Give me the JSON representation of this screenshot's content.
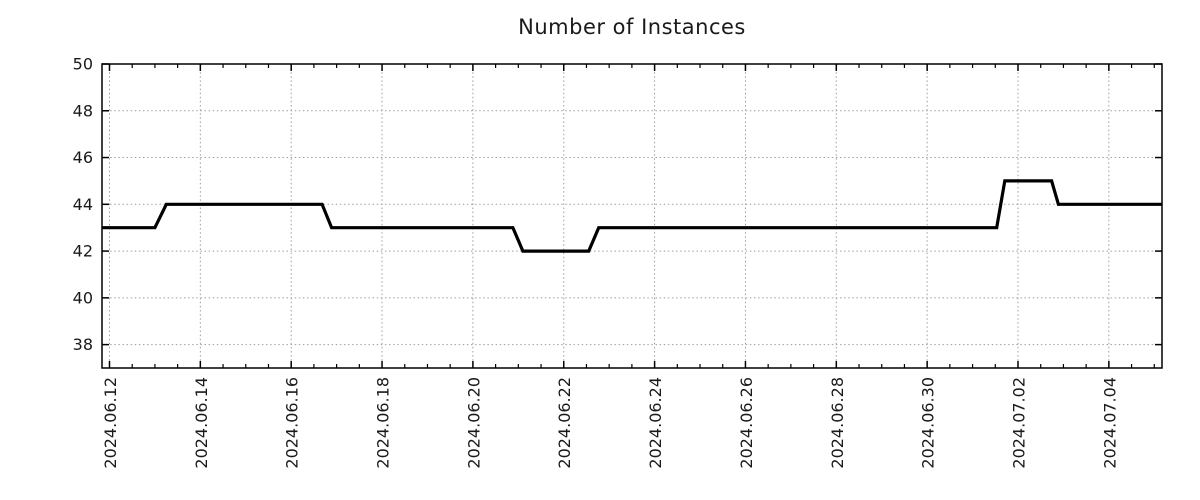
{
  "colors": {
    "background": "#ffffff",
    "axis": "#000000",
    "grid": "#9e9e9e",
    "text": "#1a1a1a",
    "line": "#000000"
  },
  "chart_data": {
    "type": "line",
    "title": "Number of Instances",
    "legend": "none",
    "grid": true,
    "x_axis": {
      "unit": "days since first tick (2024.06.12 00:00)",
      "range_days": [
        -0.165,
        23.17
      ],
      "minor_step_days": 0.5,
      "major_ticks": [
        {
          "day": 0,
          "label": "2024.06.12"
        },
        {
          "day": 2,
          "label": "2024.06.14"
        },
        {
          "day": 4,
          "label": "2024.06.16"
        },
        {
          "day": 6,
          "label": "2024.06.18"
        },
        {
          "day": 8,
          "label": "2024.06.20"
        },
        {
          "day": 10,
          "label": "2024.06.22"
        },
        {
          "day": 12,
          "label": "2024.06.24"
        },
        {
          "day": 14,
          "label": "2024.06.26"
        },
        {
          "day": 16,
          "label": "2024.06.28"
        },
        {
          "day": 18,
          "label": "2024.06.30"
        },
        {
          "day": 20,
          "label": "2024.07.02"
        },
        {
          "day": 22,
          "label": "2024.07.04"
        }
      ]
    },
    "y_axis": {
      "range": [
        37,
        50
      ],
      "ticks": [
        38,
        40,
        42,
        44,
        46,
        48,
        50
      ]
    },
    "series": [
      {
        "name": "instances",
        "color": "#000000",
        "points_day_value": [
          [
            -0.165,
            43
          ],
          [
            1.0,
            43
          ],
          [
            1.25,
            44
          ],
          [
            4.68,
            44
          ],
          [
            4.89,
            43
          ],
          [
            8.88,
            43
          ],
          [
            9.1,
            42
          ],
          [
            10.55,
            42
          ],
          [
            10.77,
            43
          ],
          [
            19.53,
            43
          ],
          [
            19.71,
            45
          ],
          [
            20.74,
            45
          ],
          [
            20.89,
            44
          ],
          [
            23.17,
            44
          ]
        ]
      }
    ]
  }
}
